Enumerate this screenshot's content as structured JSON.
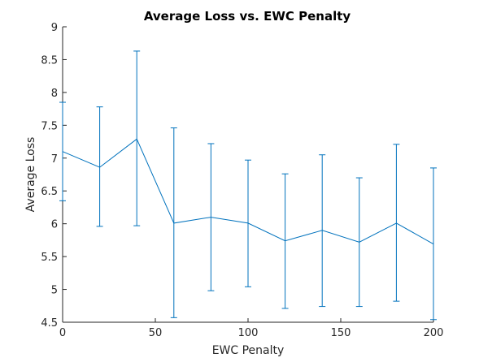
{
  "chart_data": {
    "type": "line",
    "title": "Average Loss vs. EWC Penalty",
    "xlabel": "EWC Penalty",
    "ylabel": "Average Loss",
    "xlim": [
      0,
      200
    ],
    "ylim": [
      4.5,
      9
    ],
    "xticks": [
      "0",
      "50",
      "100",
      "150",
      "200"
    ],
    "xtick_values": [
      0,
      50,
      100,
      150,
      200
    ],
    "yticks": [
      "4.5",
      "5",
      "5.5",
      "6",
      "6.5",
      "7",
      "7.5",
      "8",
      "8.5",
      "9"
    ],
    "ytick_values": [
      4.5,
      5,
      5.5,
      6,
      6.5,
      7,
      7.5,
      8,
      8.5,
      9
    ],
    "grid": false,
    "box": false,
    "series_color": "#0072bd",
    "series": [
      {
        "x": [
          0,
          20,
          40,
          60,
          80,
          100,
          120,
          140,
          160,
          180,
          200
        ],
        "y": [
          7.1,
          6.86,
          7.29,
          6.01,
          6.1,
          6.01,
          5.74,
          5.9,
          5.72,
          6.01,
          5.69
        ],
        "err_low": [
          6.35,
          5.96,
          5.97,
          4.57,
          4.98,
          5.04,
          4.71,
          4.74,
          4.74,
          4.82,
          4.54
        ],
        "err_high": [
          7.85,
          7.78,
          8.63,
          7.46,
          7.22,
          6.97,
          6.76,
          7.05,
          6.7,
          7.21,
          6.85
        ]
      }
    ]
  }
}
